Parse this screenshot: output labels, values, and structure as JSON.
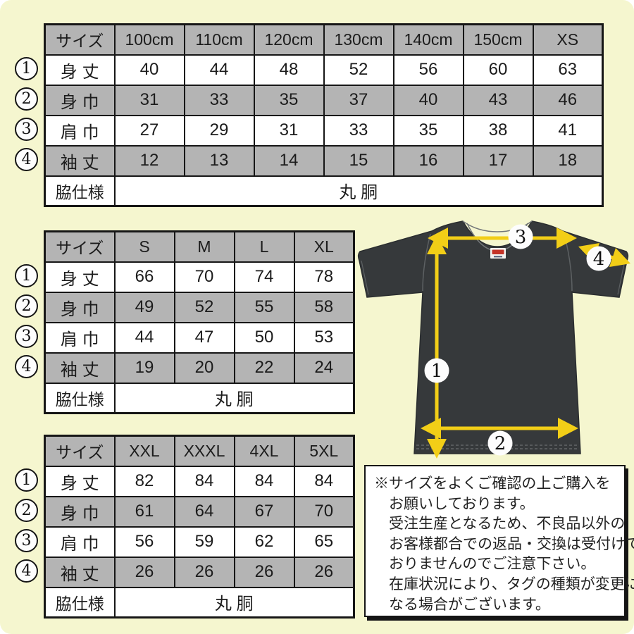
{
  "tables": [
    {
      "name": "kids",
      "header": [
        "サイズ",
        "100cm",
        "110cm",
        "120cm",
        "130cm",
        "140cm",
        "150cm",
        "XS"
      ],
      "rows": [
        {
          "digit": "1",
          "label": "身 丈",
          "values": [
            "40",
            "44",
            "48",
            "52",
            "56",
            "60",
            "63"
          ]
        },
        {
          "digit": "2",
          "label": "身 巾",
          "values": [
            "31",
            "33",
            "35",
            "37",
            "40",
            "43",
            "46"
          ]
        },
        {
          "digit": "3",
          "label": "肩 巾",
          "values": [
            "27",
            "29",
            "31",
            "33",
            "35",
            "38",
            "41"
          ]
        },
        {
          "digit": "4",
          "label": "袖 丈",
          "values": [
            "12",
            "13",
            "14",
            "15",
            "16",
            "17",
            "18"
          ]
        }
      ],
      "footer_label": "脇仕様",
      "footer_value": "丸 胴"
    },
    {
      "name": "adult",
      "header": [
        "サイズ",
        "S",
        "M",
        "L",
        "XL"
      ],
      "rows": [
        {
          "digit": "1",
          "label": "身 丈",
          "values": [
            "66",
            "70",
            "74",
            "78"
          ]
        },
        {
          "digit": "2",
          "label": "身 巾",
          "values": [
            "49",
            "52",
            "55",
            "58"
          ]
        },
        {
          "digit": "3",
          "label": "肩 巾",
          "values": [
            "44",
            "47",
            "50",
            "53"
          ]
        },
        {
          "digit": "4",
          "label": "袖 丈",
          "values": [
            "19",
            "20",
            "22",
            "24"
          ]
        }
      ],
      "footer_label": "脇仕様",
      "footer_value": "丸 胴"
    },
    {
      "name": "big",
      "header": [
        "サイズ",
        "XXL",
        "XXXL",
        "4XL",
        "5XL"
      ],
      "rows": [
        {
          "digit": "1",
          "label": "身 丈",
          "values": [
            "82",
            "84",
            "84",
            "84"
          ]
        },
        {
          "digit": "2",
          "label": "身 巾",
          "values": [
            "61",
            "64",
            "67",
            "70"
          ]
        },
        {
          "digit": "3",
          "label": "肩 巾",
          "values": [
            "56",
            "59",
            "62",
            "65"
          ]
        },
        {
          "digit": "4",
          "label": "袖 丈",
          "values": [
            "26",
            "26",
            "26",
            "26"
          ]
        }
      ],
      "footer_label": "脇仕様",
      "footer_value": "丸 胴"
    }
  ],
  "shirt": {
    "labels": [
      "1",
      "2",
      "3",
      "4"
    ]
  },
  "notice": {
    "lines": [
      "※サイズをよくご確認の上ご購入を",
      "お願いしております。",
      "受注生産となるため、不良品以外の",
      "お客様都合での返品・交換は受付けて",
      "おりませんのでご注意下さい。",
      "在庫状況により、タグの種類が変更に",
      "なる場合がございます。"
    ]
  },
  "colors": {
    "background": "#f5f6cf",
    "table_gray": "#b4b4b4",
    "table_border": "#161616",
    "shirt_body": "#36393b",
    "arrow_yellow": "#f2ce17",
    "tag_red": "#c43327"
  }
}
